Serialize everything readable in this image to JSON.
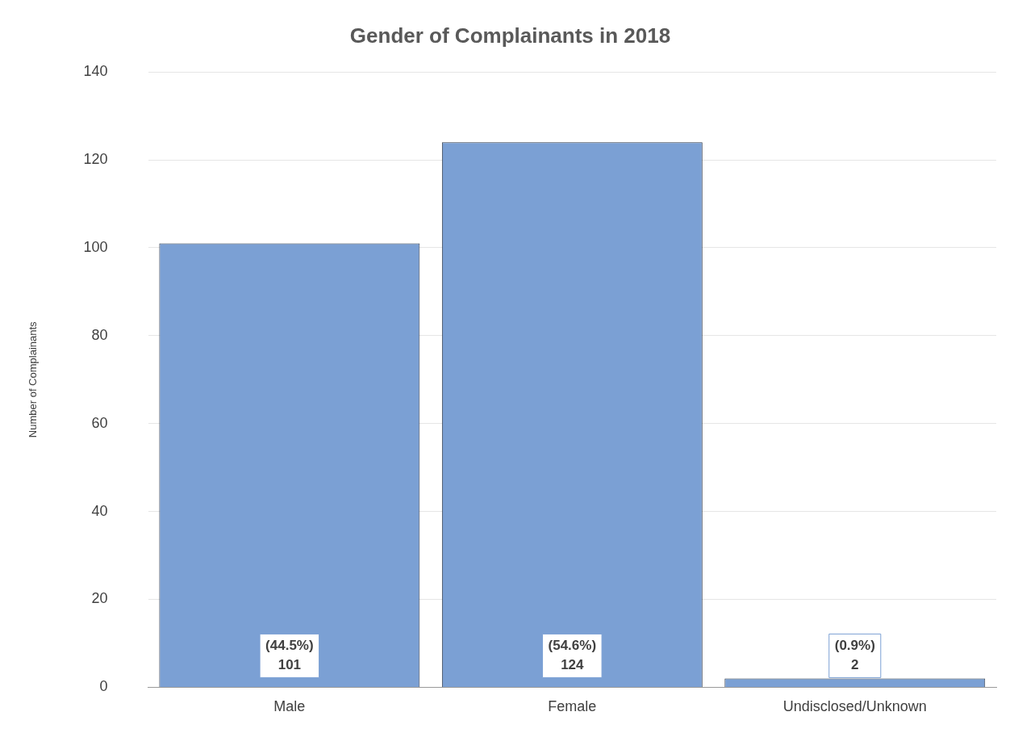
{
  "chart_data": {
    "type": "bar",
    "title": "Gender of Complainants in 2018",
    "ylabel": "Number of Complainants",
    "categories": [
      "Male",
      "Female",
      "Undisclosed/Unknown"
    ],
    "values": [
      101,
      124,
      2
    ],
    "value_labels": [
      "(44.5%)\n101",
      "(54.6%)\n124",
      "(0.9%)\n2"
    ],
    "color": "#7ba0d4",
    "ylim": [
      0,
      140
    ],
    "yticks": [
      0,
      20,
      40,
      60,
      80,
      100,
      120,
      140
    ],
    "grid": "y",
    "legend": false
  }
}
